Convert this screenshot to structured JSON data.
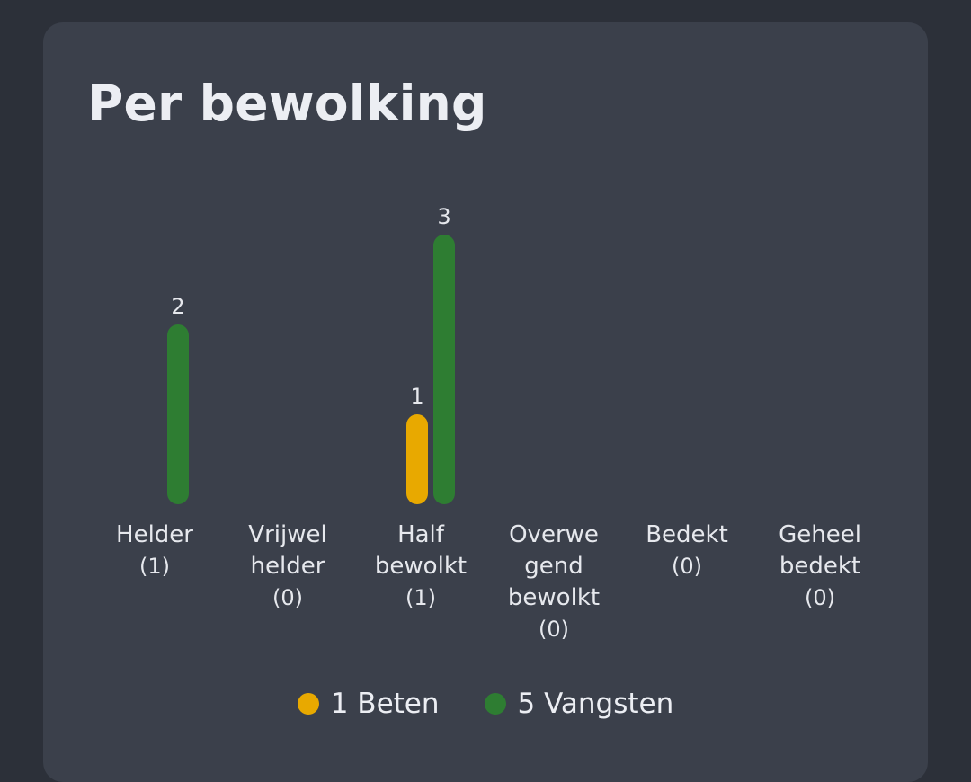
{
  "card": {
    "title": "Per bewolking"
  },
  "chart_data": {
    "type": "bar",
    "categories": [
      "Helder",
      "Vrijwel helder",
      "Half bewolkt",
      "Overwegend bewolkt",
      "Bedekt",
      "Geheel bedekt"
    ],
    "category_display": [
      [
        "Helder"
      ],
      [
        "Vrijwel",
        "helder"
      ],
      [
        "Half",
        "bewolkt"
      ],
      [
        "Overwe",
        "gend",
        "bewolkt"
      ],
      [
        "Bedekt"
      ],
      [
        "Geheel",
        "bedekt"
      ]
    ],
    "category_counts": [
      "(1)",
      "(0)",
      "(1)",
      "(0)",
      "(0)",
      "(0)"
    ],
    "series": [
      {
        "name": "Beten",
        "legend": "1 Beten",
        "color": "#e8a900",
        "values": [
          0,
          0,
          1,
          0,
          0,
          0
        ]
      },
      {
        "name": "Vangsten",
        "legend": "5 Vangsten",
        "color": "#2e7d32",
        "values": [
          2,
          0,
          3,
          0,
          0,
          0
        ]
      }
    ],
    "ylim": [
      0,
      3
    ],
    "data_labels": true,
    "legend_position": "bottom-center",
    "grid": false
  }
}
